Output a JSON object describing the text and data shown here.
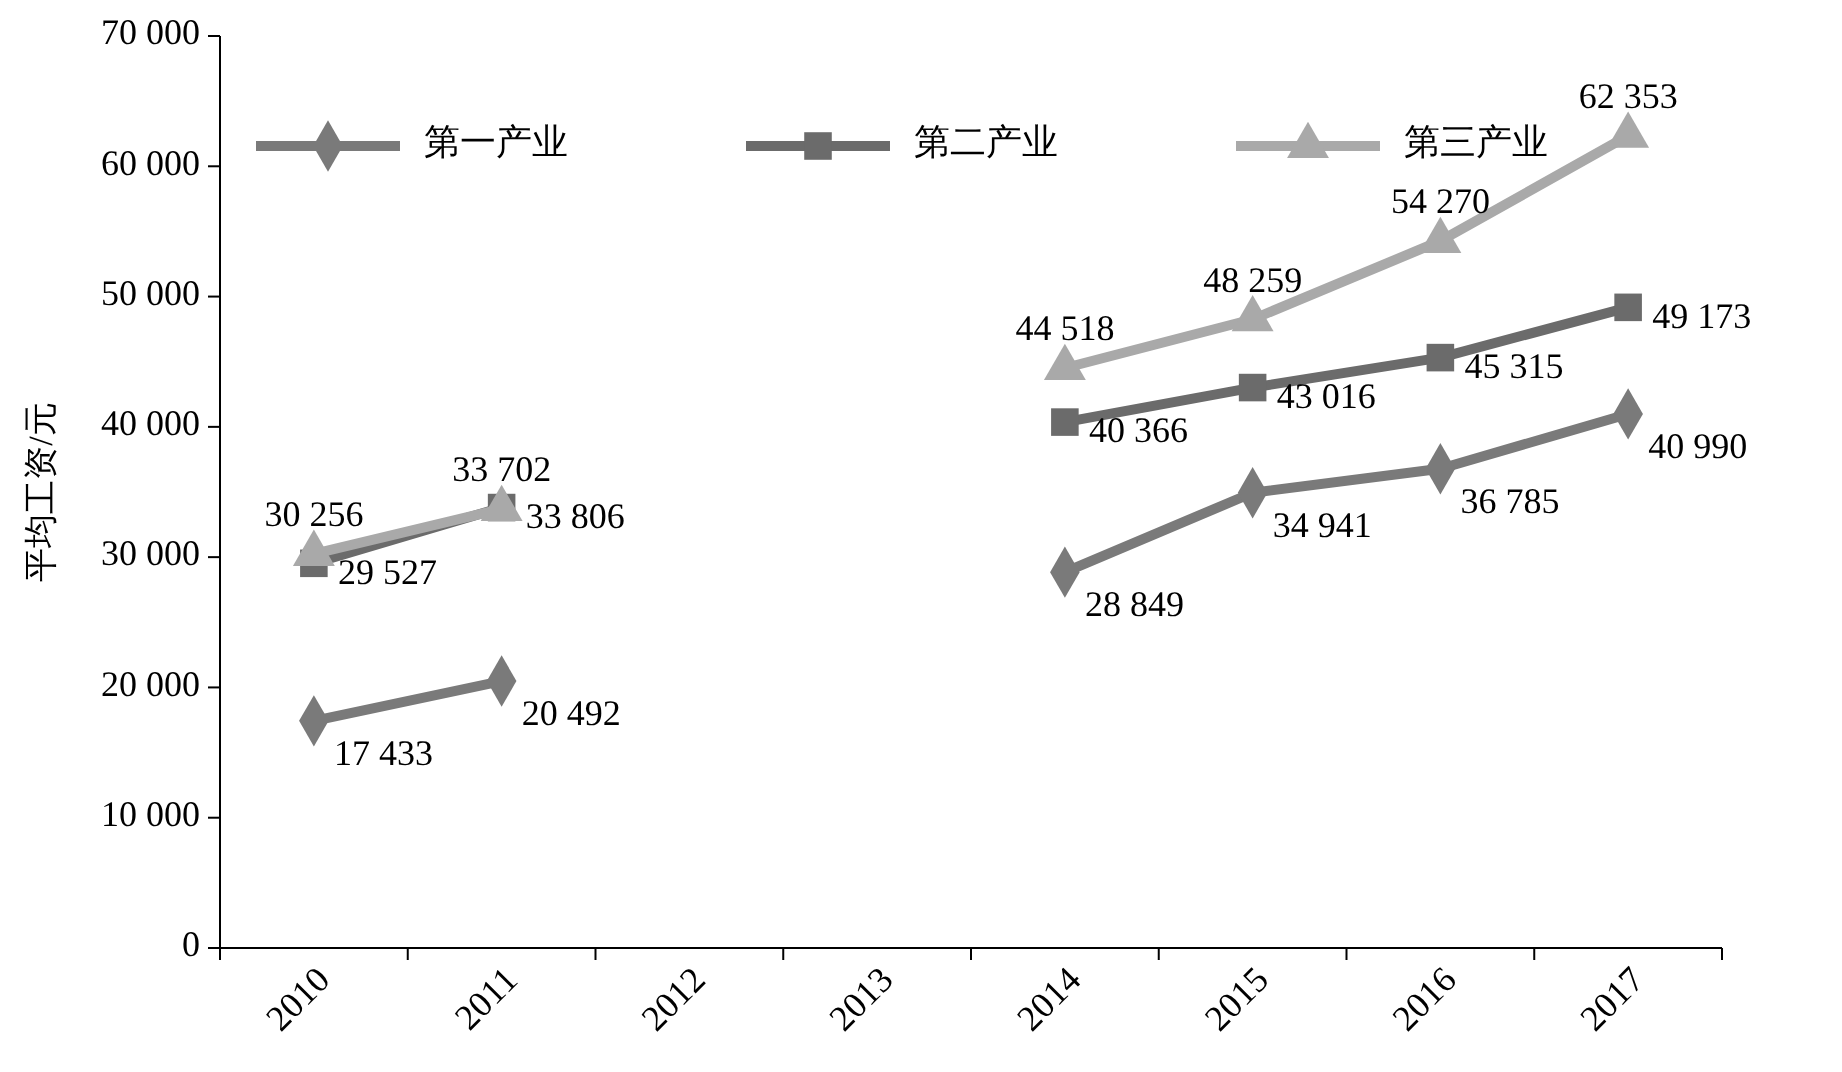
{
  "chart_data": {
    "type": "line",
    "ylabel": "平均工资/元",
    "categories": [
      "2010",
      "2011",
      "2012",
      "2013",
      "2014",
      "2015",
      "2016",
      "2017"
    ],
    "ylim": [
      0,
      70000
    ],
    "yticks": [
      {
        "value": 0,
        "label": "0"
      },
      {
        "value": 10000,
        "label": "10 000"
      },
      {
        "value": 20000,
        "label": "20 000"
      },
      {
        "value": 30000,
        "label": "30 000"
      },
      {
        "value": 40000,
        "label": "40 000"
      },
      {
        "value": 50000,
        "label": "50 000"
      },
      {
        "value": 60000,
        "label": "60 000"
      },
      {
        "value": 70000,
        "label": "70 000"
      }
    ],
    "legend": "top left",
    "grid": false,
    "line_style": "solid",
    "series": [
      {
        "name": "第一产业",
        "color": "#7a7a7a",
        "marker": "diamond",
        "values": [
          17433,
          20492,
          null,
          null,
          28849,
          34941,
          36785,
          40990
        ],
        "value_labels": [
          "17 433",
          "20 492",
          null,
          null,
          "28 849",
          "34 941",
          "36 785",
          "40 990"
        ]
      },
      {
        "name": "第二产业",
        "color": "#6b6b6b",
        "marker": "square",
        "values": [
          29527,
          33806,
          null,
          null,
          40366,
          43016,
          45315,
          49173
        ],
        "value_labels": [
          "29 527",
          "33 806",
          null,
          null,
          "40 366",
          "43 016",
          "45 315",
          "49 173"
        ]
      },
      {
        "name": "第三产业",
        "color": "#a9a9a9",
        "marker": "triangle",
        "values": [
          30256,
          33702,
          null,
          null,
          44518,
          48259,
          54270,
          62353
        ],
        "value_labels": [
          "30 256",
          "33 702",
          null,
          null,
          "44 518",
          "48 259",
          "54 270",
          "62 353"
        ]
      }
    ]
  }
}
